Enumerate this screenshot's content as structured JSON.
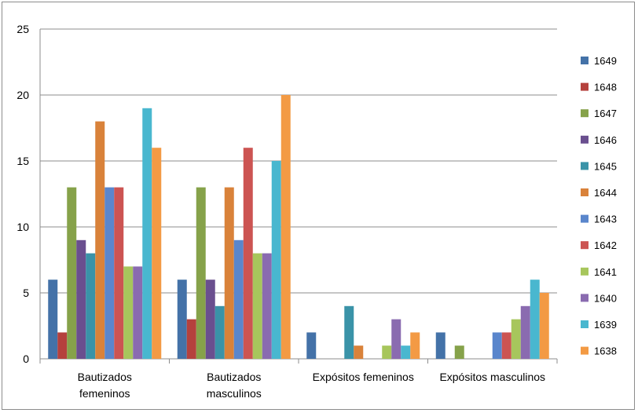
{
  "chart_data": {
    "type": "bar",
    "title": "",
    "xlabel": "",
    "ylabel": "",
    "ylim": [
      0,
      25
    ],
    "yticks": [
      0,
      5,
      10,
      15,
      20,
      25
    ],
    "grid": true,
    "legend_position": "right",
    "categories": [
      [
        "Bautizados",
        "femeninos"
      ],
      [
        "Bautizados",
        "masculinos"
      ],
      [
        "Expósitos femeninos"
      ],
      [
        "Expósitos masculinos"
      ]
    ],
    "series": [
      {
        "name": "1649",
        "color": "#4472a8",
        "values": [
          6,
          6,
          2,
          2
        ]
      },
      {
        "name": "1648",
        "color": "#b5413d",
        "values": [
          2,
          3,
          0,
          0
        ]
      },
      {
        "name": "1647",
        "color": "#86a24a",
        "values": [
          13,
          13,
          0,
          1
        ]
      },
      {
        "name": "1646",
        "color": "#6a4f8f",
        "values": [
          9,
          6,
          0,
          0
        ]
      },
      {
        "name": "1645",
        "color": "#3a93a8",
        "values": [
          8,
          4,
          4,
          0
        ]
      },
      {
        "name": "1644",
        "color": "#d9823a",
        "values": [
          18,
          13,
          1,
          0
        ]
      },
      {
        "name": "1643",
        "color": "#5a86cc",
        "values": [
          13,
          9,
          0,
          2
        ]
      },
      {
        "name": "1642",
        "color": "#cc5452",
        "values": [
          13,
          16,
          0,
          2
        ]
      },
      {
        "name": "1641",
        "color": "#a7c65c",
        "values": [
          7,
          8,
          1,
          3
        ]
      },
      {
        "name": "1640",
        "color": "#8a6bb0",
        "values": [
          7,
          8,
          3,
          4
        ]
      },
      {
        "name": "1639",
        "color": "#49b7cf",
        "values": [
          19,
          15,
          1,
          6
        ]
      },
      {
        "name": "1638",
        "color": "#f39a44",
        "values": [
          16,
          20,
          2,
          5
        ]
      }
    ]
  }
}
